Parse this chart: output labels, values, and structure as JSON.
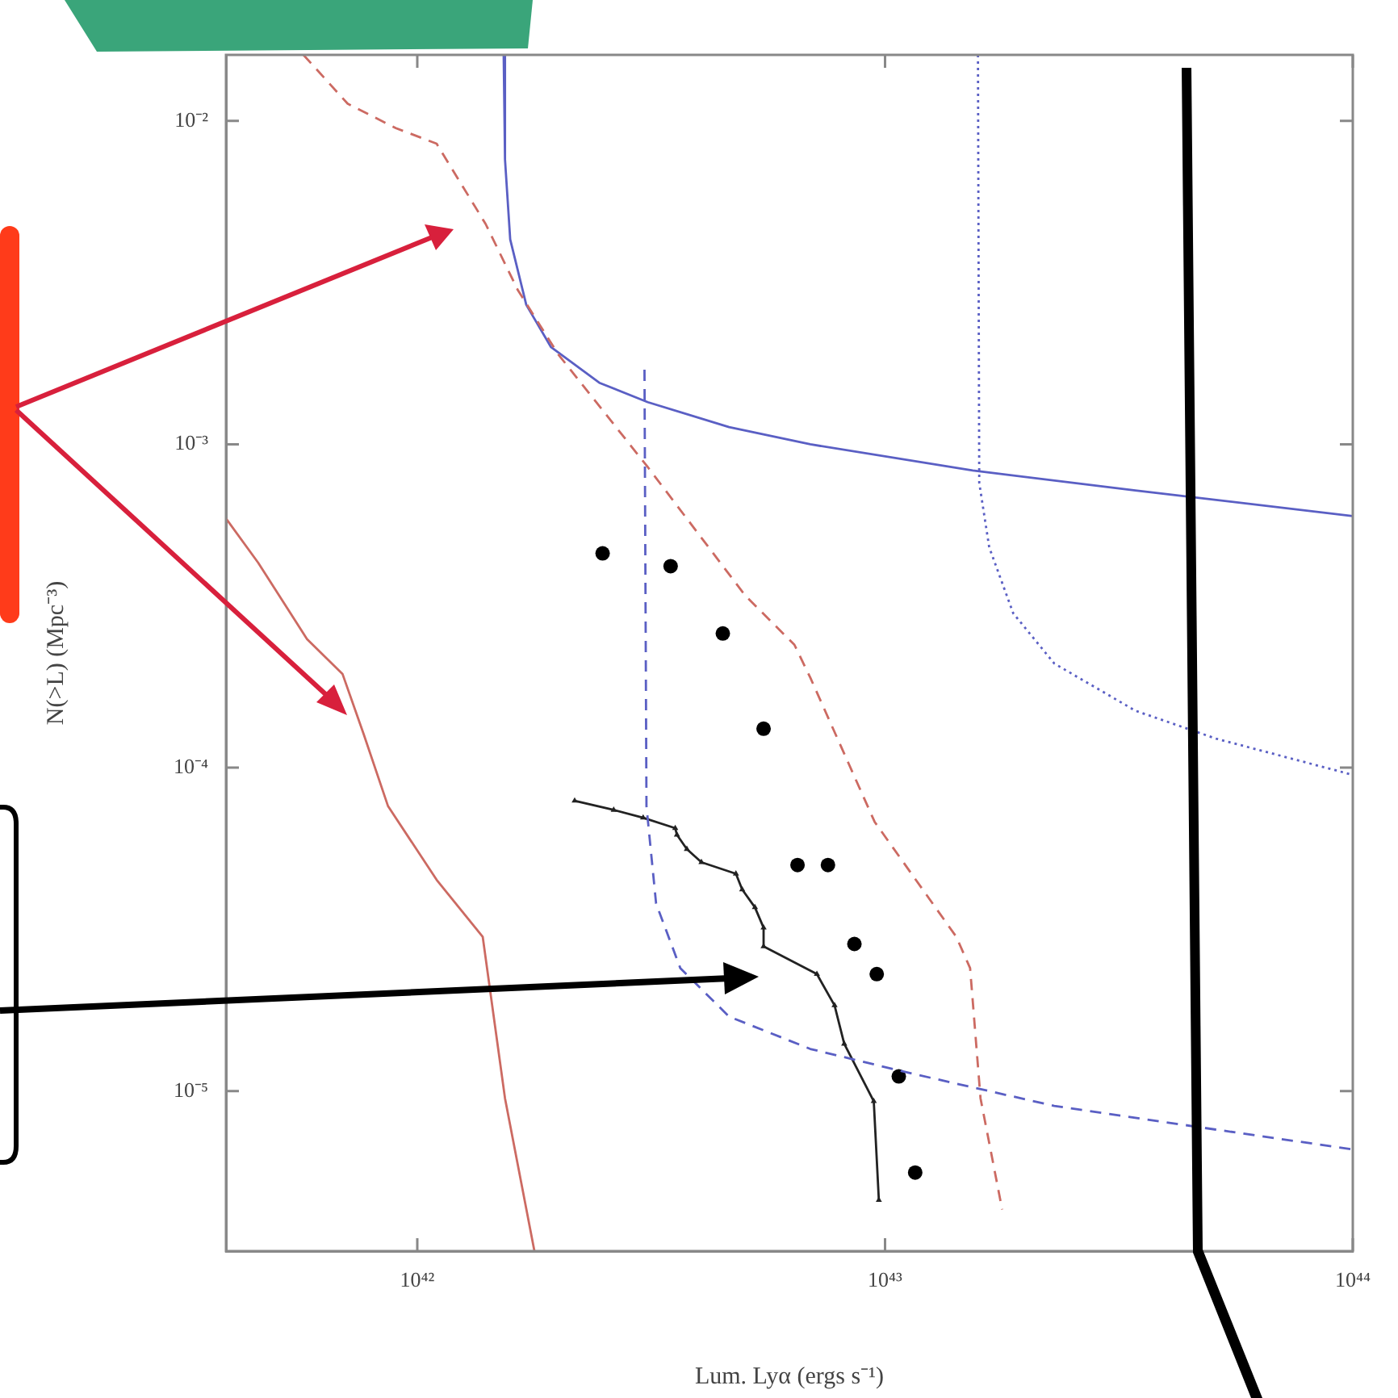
{
  "chart_data": {
    "type": "line",
    "xlabel": "Lum. Lyα (ergs s⁻¹)",
    "ylabel": "N(>L) (Mpc⁻³)",
    "log": "xy",
    "grid": false,
    "legend": false,
    "xlim": [
      3.9e+41,
      1e+44
    ],
    "ylim": [
      3.2e-06,
      0.016
    ],
    "xticks": [
      {
        "value": 1e+42,
        "label": "10⁴²"
      },
      {
        "value": 1e+43,
        "label": "10⁴³"
      },
      {
        "value": 1e+44,
        "label": "10⁴⁴"
      }
    ],
    "yticks": [
      {
        "value": 1e-05,
        "label": "10⁻⁵"
      },
      {
        "value": 0.0001,
        "label": "10⁻⁴"
      },
      {
        "value": 0.001,
        "label": "10⁻³"
      },
      {
        "value": 0.01,
        "label": "10⁻²"
      }
    ],
    "series": [
      {
        "color": "#cc6a62",
        "line_style": "solid",
        "marker": "none",
        "x": [
          3.9e+41,
          4.57e+41,
          5.81e+41,
          6.92e+41,
          7.68e+41,
          8.66e+41,
          1.1e+42,
          1.38e+42,
          1.54e+42,
          1.78e+42
        ],
        "values": [
          0.00059,
          0.00043,
          0.00025,
          0.000195,
          0.000127,
          7.6e-05,
          4.5e-05,
          3e-05,
          9.5e-06,
          3.2e-06
        ]
      },
      {
        "color": "#cc6a62",
        "line_style": "dashed",
        "marker": "none",
        "x": [
          5.71e+41,
          7.1e+41,
          9e+41,
          1.1e+42,
          1.4e+42,
          1.64e+42,
          2e+42,
          3.11e+42,
          5.03e+42,
          6.4e+42,
          6.92e+42,
          9.5e+42,
          1.42e+43,
          1.52e+43,
          1.6e+43,
          1.78e+43
        ],
        "values": [
          0.016,
          0.0113,
          0.0095,
          0.0085,
          0.0048,
          0.003,
          0.0019,
          0.00085,
          0.00034,
          0.00024,
          0.00019,
          6.8e-05,
          3e-05,
          2.4e-05,
          9.5e-06,
          4.3e-06
        ]
      },
      {
        "color": "#5a5fc4",
        "line_style": "solid",
        "marker": "none",
        "x": [
          1.53e+42,
          1.54e+42,
          1.58e+42,
          1.71e+42,
          1.93e+42,
          2.45e+42,
          3.11e+42,
          4.64e+42,
          6.92e+42,
          1.54e+43,
          3.43e+43,
          1e+44
        ],
        "values": [
          0.016,
          0.0076,
          0.0043,
          0.0027,
          0.002,
          0.00155,
          0.00135,
          0.00113,
          0.001,
          0.00083,
          0.00072,
          0.0006
        ]
      },
      {
        "color": "#5a5fc4",
        "line_style": "dashed",
        "marker": "none",
        "x": [
          3.06e+42,
          3.09e+42,
          3.24e+42,
          3.65e+42,
          4.64e+42,
          6.92e+42,
          1.12e+43,
          2.3e+43,
          5.1e+43,
          1e+44
        ],
        "values": [
          0.0017,
          7.6e-05,
          3.8e-05,
          2.4e-05,
          1.7e-05,
          1.35e-05,
          1.14e-05,
          9e-06,
          7.6e-06,
          6.6e-06
        ]
      },
      {
        "color": "#5a5fc4",
        "line_style": "dotted",
        "marker": "none",
        "x": [
          1.58e+43,
          1.59e+43,
          1.67e+43,
          1.88e+43,
          2.3e+43,
          3.43e+43,
          5.1e+43,
          1e+44
        ],
        "values": [
          0.016,
          0.00076,
          0.00048,
          0.0003,
          0.00021,
          0.00015,
          0.000123,
          9.5e-05
        ]
      },
      {
        "type": "scatter",
        "color": "#000000",
        "marker": "circle",
        "x": [
          2.49e+42,
          3.48e+42,
          4.5e+42,
          5.5e+42,
          6.5e+42,
          7.55e+42,
          8.6e+42,
          9.6e+42,
          1.07e+43,
          1.16e+43
        ],
        "values": [
          0.00046,
          0.00042,
          0.00026,
          0.000132,
          5e-05,
          5e-05,
          2.85e-05,
          2.3e-05,
          1.11e-05,
          5.6e-06
        ]
      },
      {
        "color": "#222222",
        "line_style": "solid",
        "marker": "triangle",
        "x": [
          2.17e+42,
          2.63e+42,
          3.04e+42,
          3.56e+42,
          3.59e+42,
          3.77e+42,
          4.05e+42,
          4.8e+42,
          4.95e+42,
          5.27e+42,
          5.5e+42,
          5.5e+42,
          7.15e+42,
          7.8e+42,
          8.18e+42,
          9.46e+42,
          9.7e+42
        ],
        "values": [
          7.9e-05,
          7.4e-05,
          7e-05,
          6.5e-05,
          6.2e-05,
          5.6e-05,
          5.1e-05,
          4.7e-05,
          4.2e-05,
          3.7e-05,
          3.2e-05,
          2.8e-05,
          2.3e-05,
          1.84e-05,
          1.4e-05,
          9.3e-06,
          4.6e-06
        ]
      }
    ]
  }
}
